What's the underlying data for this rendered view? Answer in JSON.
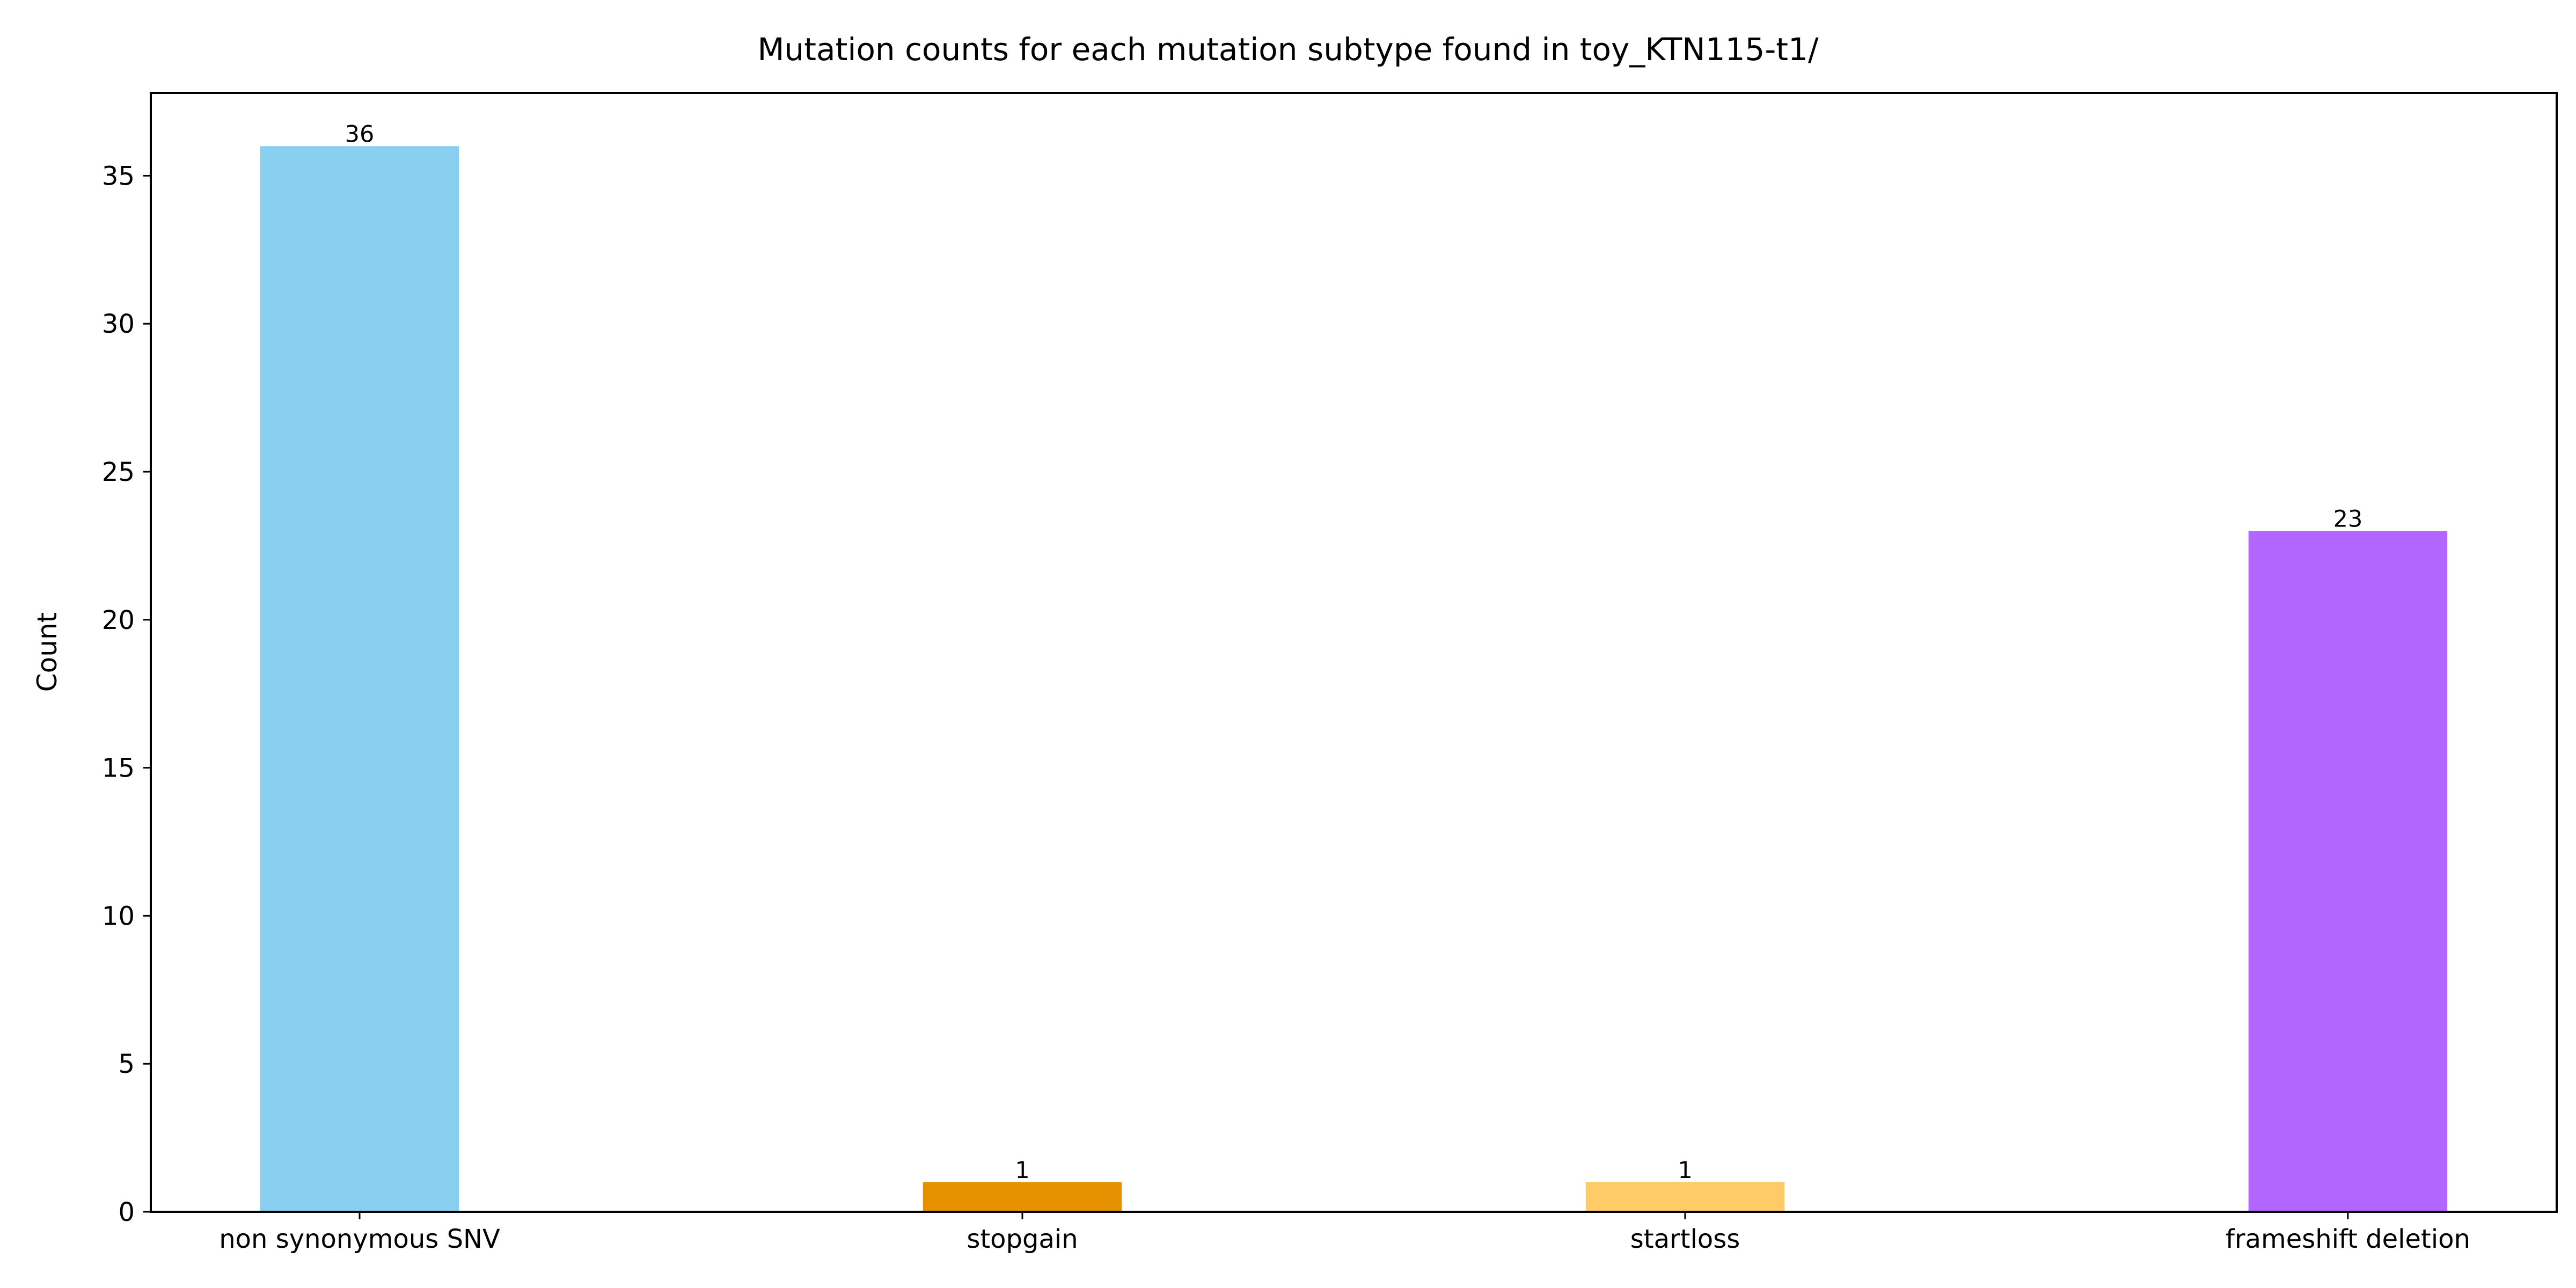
{
  "chart_data": {
    "type": "bar",
    "title": "Mutation counts for each mutation subtype found in toy_KTN115-t1/",
    "xlabel": "",
    "ylabel": "Count",
    "categories": [
      "non synonymous SNV",
      "stopgain",
      "startloss",
      "frameshift deletion"
    ],
    "values": [
      36,
      1,
      1,
      23
    ],
    "colors": [
      "#89CFF0",
      "#E69100",
      "#FFCB66",
      "#B266FF"
    ],
    "data_labels": [
      "36",
      "1",
      "1",
      "23"
    ],
    "ylim": [
      0,
      37.8
    ],
    "yticks": [
      0,
      5,
      10,
      15,
      20,
      25,
      30,
      35
    ],
    "ytick_labels": [
      "0",
      "5",
      "10",
      "15",
      "20",
      "25",
      "30",
      "35"
    ],
    "grid": false,
    "legend": "none"
  }
}
